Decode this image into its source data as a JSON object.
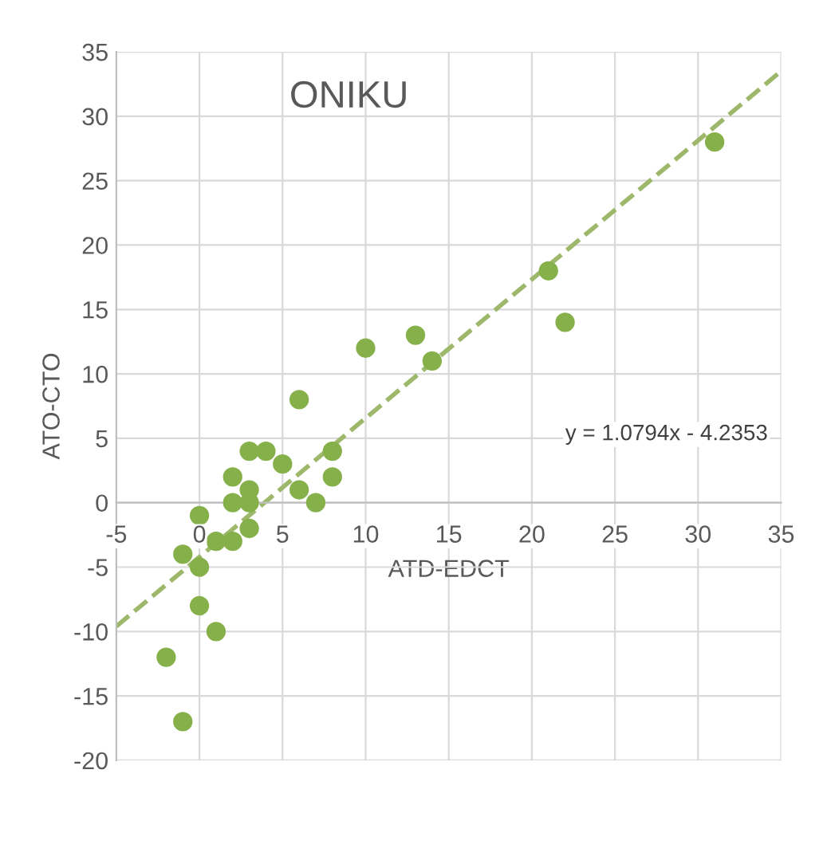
{
  "chart_data": {
    "type": "scatter",
    "title": "ONIKU",
    "xlabel": "ATD-EDCT",
    "ylabel": "ATO-CTO",
    "xlim": [
      -5,
      35
    ],
    "ylim": [
      -20,
      35
    ],
    "xticks": [
      -5,
      0,
      5,
      10,
      15,
      20,
      25,
      30,
      35
    ],
    "yticks": [
      -20,
      -15,
      -10,
      -5,
      0,
      5,
      10,
      15,
      20,
      25,
      30,
      35
    ],
    "grid": true,
    "annotations": [
      "y = 1.0794x - 4.2353"
    ],
    "series": [
      {
        "marker": "circle",
        "color": "#86b04a",
        "x": [
          31,
          21,
          22,
          13,
          14,
          10,
          6,
          3,
          4,
          5,
          8,
          8,
          6,
          7,
          2,
          2,
          3,
          3,
          3,
          2,
          1,
          0,
          0,
          -1,
          0,
          1,
          -2,
          -1
        ],
        "values": [
          28,
          18,
          14,
          13,
          11,
          12,
          8,
          4,
          4,
          3,
          4,
          2,
          1,
          0,
          2,
          0,
          1,
          0,
          -2,
          -3,
          -3,
          -1,
          -5,
          -4,
          -8,
          -10,
          -12,
          -17
        ]
      },
      {
        "type": "line",
        "color": "#9db86a",
        "line_style": "dashed",
        "marker": "none",
        "x": [
          -5,
          35
        ],
        "values": [
          -9.6,
          33.5
        ]
      }
    ]
  }
}
